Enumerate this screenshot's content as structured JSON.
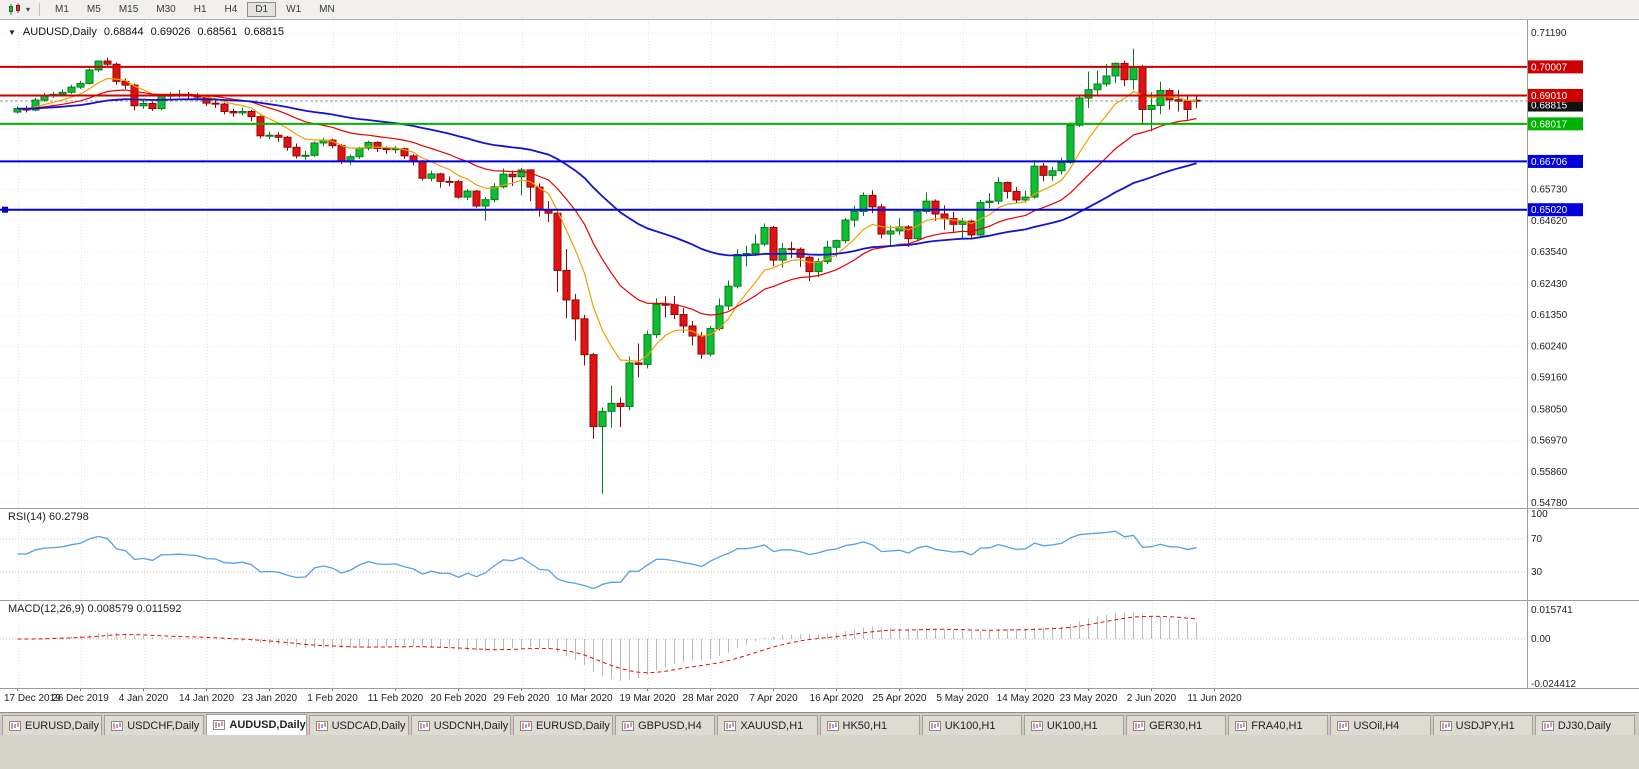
{
  "toolbar": {
    "chart_type_icon": "candlestick-chart-icon",
    "dropdown_icon": "▾",
    "timeframes": [
      "M1",
      "M5",
      "M15",
      "M30",
      "H1",
      "H4",
      "D1",
      "W1",
      "MN"
    ],
    "active_timeframe": "D1"
  },
  "chart_title": {
    "menu_icon": "▼",
    "symbol_period": "AUDUSD,Daily",
    "open": "0.68844",
    "high": "0.69026",
    "low": "0.68561",
    "close": "0.68815"
  },
  "panels": {
    "rsi_label": "RSI(14) 60.2798",
    "macd_label": "MACD(12,26,9) 0.008579 0.011592"
  },
  "tabs": [
    {
      "label": "EURUSD,Daily",
      "active": false
    },
    {
      "label": "USDCHF,Daily",
      "active": false
    },
    {
      "label": "AUDUSD,Daily",
      "active": true
    },
    {
      "label": "USDCAD,Daily",
      "active": false
    },
    {
      "label": "USDCNH,Daily",
      "active": false
    },
    {
      "label": "EURUSD,Daily",
      "active": false
    },
    {
      "label": "GBPUSD,H4",
      "active": false
    },
    {
      "label": "XAUUSD,H1",
      "active": false
    },
    {
      "label": "HK50,H1",
      "active": false
    },
    {
      "label": "UK100,H1",
      "active": false
    },
    {
      "label": "UK100,H1",
      "active": false
    },
    {
      "label": "GER30,H1",
      "active": false
    },
    {
      "label": "FRA40,H1",
      "active": false
    },
    {
      "label": "USOil,H4",
      "active": false
    },
    {
      "label": "USDJPY,H1",
      "active": false
    },
    {
      "label": "DJ30,Daily",
      "active": false
    }
  ],
  "chart_data": {
    "type": "candlestick",
    "symbol": "AUDUSD",
    "period": "Daily",
    "current_ohlc": {
      "open": 0.68844,
      "high": 0.69026,
      "low": 0.68561,
      "close": 0.68815
    },
    "y_axis": {
      "min": 0.5478,
      "max": 0.7119,
      "tick_prices": [
        0.7119,
        0.6573,
        0.6462,
        0.6354,
        0.6243,
        0.6135,
        0.6024,
        0.5916,
        0.5805,
        0.5697,
        0.5586,
        0.5478
      ],
      "grid_prices": [
        0.7119,
        0.7008,
        0.6897,
        0.6786,
        0.6675,
        0.6573,
        0.6462,
        0.6354,
        0.6243,
        0.6135,
        0.6024,
        0.5916,
        0.5805,
        0.5697,
        0.5586,
        0.5478
      ]
    },
    "x_tick_labels": [
      "17 Dec 2019",
      "26 Dec 2019",
      "4 Jan 2020",
      "14 Jan 2020",
      "23 Jan 2020",
      "1 Feb 2020",
      "11 Feb 2020",
      "20 Feb 2020",
      "29 Feb 2020",
      "10 Mar 2020",
      "19 Mar 2020",
      "28 Mar 2020",
      "7 Apr 2020",
      "16 Apr 2020",
      "25 Apr 2020",
      "5 May 2020",
      "14 May 2020",
      "23 May 2020",
      "2 Jun 2020",
      "11 Jun 2020"
    ],
    "candles": [
      [
        0.6843,
        0.6862,
        0.6838,
        0.6855
      ],
      [
        0.6855,
        0.6864,
        0.6842,
        0.685
      ],
      [
        0.685,
        0.6892,
        0.6846,
        0.6885
      ],
      [
        0.6885,
        0.691,
        0.6879,
        0.69
      ],
      [
        0.69,
        0.6914,
        0.6892,
        0.6905
      ],
      [
        0.6905,
        0.6922,
        0.6899,
        0.6912
      ],
      [
        0.6912,
        0.6938,
        0.6907,
        0.693
      ],
      [
        0.693,
        0.6952,
        0.6924,
        0.6943
      ],
      [
        0.6943,
        0.6996,
        0.6939,
        0.699
      ],
      [
        0.699,
        0.7023,
        0.6982,
        0.7021
      ],
      [
        0.7021,
        0.7032,
        0.6998,
        0.701
      ],
      [
        0.701,
        0.7016,
        0.6938,
        0.695
      ],
      [
        0.695,
        0.6961,
        0.6924,
        0.6937
      ],
      [
        0.6937,
        0.6942,
        0.6849,
        0.6865
      ],
      [
        0.6865,
        0.6884,
        0.6854,
        0.6873
      ],
      [
        0.6873,
        0.688,
        0.6847,
        0.6855
      ],
      [
        0.6855,
        0.6905,
        0.6849,
        0.69
      ],
      [
        0.69,
        0.6912,
        0.6885,
        0.6902
      ],
      [
        0.6902,
        0.692,
        0.6894,
        0.6905
      ],
      [
        0.6905,
        0.6913,
        0.6887,
        0.69
      ],
      [
        0.69,
        0.6908,
        0.6884,
        0.6895
      ],
      [
        0.6895,
        0.6901,
        0.6864,
        0.6874
      ],
      [
        0.6874,
        0.6884,
        0.6857,
        0.6871
      ],
      [
        0.6871,
        0.6876,
        0.6835,
        0.6845
      ],
      [
        0.6845,
        0.6855,
        0.6826,
        0.684
      ],
      [
        0.684,
        0.6858,
        0.6832,
        0.6845
      ],
      [
        0.6845,
        0.685,
        0.6811,
        0.6827
      ],
      [
        0.6827,
        0.6831,
        0.6751,
        0.676
      ],
      [
        0.676,
        0.6774,
        0.6748,
        0.6762
      ],
      [
        0.6762,
        0.6772,
        0.6739,
        0.6755
      ],
      [
        0.6755,
        0.676,
        0.6708,
        0.672
      ],
      [
        0.672,
        0.6733,
        0.6681,
        0.669
      ],
      [
        0.669,
        0.6707,
        0.6677,
        0.6692
      ],
      [
        0.6692,
        0.674,
        0.6687,
        0.6735
      ],
      [
        0.6735,
        0.6753,
        0.6724,
        0.6745
      ],
      [
        0.6745,
        0.675,
        0.6716,
        0.6726
      ],
      [
        0.6726,
        0.6731,
        0.6661,
        0.6672
      ],
      [
        0.6672,
        0.6695,
        0.6659,
        0.6687
      ],
      [
        0.6687,
        0.6722,
        0.6679,
        0.6717
      ],
      [
        0.6717,
        0.6743,
        0.6709,
        0.6737
      ],
      [
        0.6737,
        0.6741,
        0.6704,
        0.6716
      ],
      [
        0.6716,
        0.6723,
        0.6697,
        0.6712
      ],
      [
        0.6712,
        0.6724,
        0.6699,
        0.6715
      ],
      [
        0.6715,
        0.6719,
        0.6679,
        0.669
      ],
      [
        0.669,
        0.6696,
        0.6657,
        0.667
      ],
      [
        0.667,
        0.6675,
        0.6604,
        0.6612
      ],
      [
        0.6612,
        0.6638,
        0.6601,
        0.6627
      ],
      [
        0.6627,
        0.6631,
        0.6579,
        0.6601
      ],
      [
        0.6601,
        0.6618,
        0.6584,
        0.66
      ],
      [
        0.66,
        0.6606,
        0.6541,
        0.6546
      ],
      [
        0.6546,
        0.6573,
        0.6536,
        0.6567
      ],
      [
        0.6567,
        0.6571,
        0.6509,
        0.6515
      ],
      [
        0.6515,
        0.6546,
        0.6464,
        0.6537
      ],
      [
        0.6537,
        0.6595,
        0.6527,
        0.6582
      ],
      [
        0.6582,
        0.6646,
        0.6576,
        0.6626
      ],
      [
        0.6626,
        0.6639,
        0.6585,
        0.6617
      ],
      [
        0.6617,
        0.6648,
        0.6552,
        0.6641
      ],
      [
        0.6641,
        0.6642,
        0.6532,
        0.6581
      ],
      [
        0.6581,
        0.6594,
        0.6478,
        0.6501
      ],
      [
        0.6501,
        0.6532,
        0.6459,
        0.649
      ],
      [
        0.649,
        0.6506,
        0.6214,
        0.629
      ],
      [
        0.629,
        0.6365,
        0.6123,
        0.6187
      ],
      [
        0.6187,
        0.6208,
        0.6045,
        0.6121
      ],
      [
        0.6121,
        0.6135,
        0.5958,
        0.5996
      ],
      [
        0.5996,
        0.6002,
        0.5702,
        0.5745
      ],
      [
        0.5745,
        0.5812,
        0.551,
        0.5798
      ],
      [
        0.5798,
        0.5888,
        0.5741,
        0.5826
      ],
      [
        0.5826,
        0.5846,
        0.5743,
        0.5815
      ],
      [
        0.5815,
        0.5989,
        0.5802,
        0.5967
      ],
      [
        0.5967,
        0.6035,
        0.5917,
        0.5962
      ],
      [
        0.5962,
        0.608,
        0.5948,
        0.6066
      ],
      [
        0.6066,
        0.6193,
        0.6054,
        0.6172
      ],
      [
        0.6172,
        0.62,
        0.6126,
        0.617
      ],
      [
        0.617,
        0.6201,
        0.612,
        0.6136
      ],
      [
        0.6136,
        0.6159,
        0.6072,
        0.6096
      ],
      [
        0.6096,
        0.6114,
        0.6028,
        0.6061
      ],
      [
        0.6061,
        0.6075,
        0.5981,
        0.5998
      ],
      [
        0.5998,
        0.6096,
        0.599,
        0.6087
      ],
      [
        0.6087,
        0.6192,
        0.608,
        0.6166
      ],
      [
        0.6166,
        0.6255,
        0.6152,
        0.6235
      ],
      [
        0.6235,
        0.6364,
        0.6227,
        0.6346
      ],
      [
        0.6346,
        0.6376,
        0.6304,
        0.6349
      ],
      [
        0.6349,
        0.6416,
        0.6341,
        0.6382
      ],
      [
        0.6382,
        0.6454,
        0.6375,
        0.644
      ],
      [
        0.644,
        0.6445,
        0.6305,
        0.6326
      ],
      [
        0.6326,
        0.6386,
        0.63,
        0.6366
      ],
      [
        0.6366,
        0.639,
        0.6333,
        0.6364
      ],
      [
        0.6364,
        0.637,
        0.6302,
        0.6336
      ],
      [
        0.6336,
        0.6341,
        0.6253,
        0.6286
      ],
      [
        0.6286,
        0.6333,
        0.6266,
        0.6321
      ],
      [
        0.6321,
        0.6394,
        0.6312,
        0.6371
      ],
      [
        0.6371,
        0.6398,
        0.6338,
        0.6394
      ],
      [
        0.6394,
        0.6472,
        0.6385,
        0.6466
      ],
      [
        0.6466,
        0.6516,
        0.6441,
        0.6496
      ],
      [
        0.6496,
        0.6562,
        0.648,
        0.6552
      ],
      [
        0.6552,
        0.657,
        0.649,
        0.6512
      ],
      [
        0.6512,
        0.6522,
        0.6402,
        0.6417
      ],
      [
        0.6417,
        0.6447,
        0.6374,
        0.6428
      ],
      [
        0.6428,
        0.6472,
        0.6413,
        0.6442
      ],
      [
        0.6442,
        0.6448,
        0.6372,
        0.6401
      ],
      [
        0.6401,
        0.6504,
        0.6393,
        0.6496
      ],
      [
        0.6496,
        0.6562,
        0.6489,
        0.6532
      ],
      [
        0.6532,
        0.6538,
        0.6463,
        0.6487
      ],
      [
        0.6487,
        0.6517,
        0.6432,
        0.6471
      ],
      [
        0.6471,
        0.6495,
        0.6423,
        0.6451
      ],
      [
        0.6451,
        0.6473,
        0.6403,
        0.6462
      ],
      [
        0.6462,
        0.6467,
        0.6402,
        0.6414
      ],
      [
        0.6414,
        0.6536,
        0.641,
        0.6527
      ],
      [
        0.6527,
        0.656,
        0.6508,
        0.6532
      ],
      [
        0.6532,
        0.6616,
        0.6521,
        0.6597
      ],
      [
        0.6597,
        0.66,
        0.6541,
        0.6566
      ],
      [
        0.6566,
        0.6581,
        0.6524,
        0.6536
      ],
      [
        0.6536,
        0.6569,
        0.6526,
        0.6546
      ],
      [
        0.6546,
        0.6675,
        0.6541,
        0.6654
      ],
      [
        0.6654,
        0.6665,
        0.6601,
        0.6622
      ],
      [
        0.6622,
        0.6652,
        0.6603,
        0.6638
      ],
      [
        0.6638,
        0.6684,
        0.6625,
        0.6667
      ],
      [
        0.6667,
        0.6807,
        0.6662,
        0.6797
      ],
      [
        0.6797,
        0.6899,
        0.6791,
        0.6892
      ],
      [
        0.6892,
        0.6984,
        0.6858,
        0.6921
      ],
      [
        0.6921,
        0.6988,
        0.6902,
        0.6941
      ],
      [
        0.6941,
        0.7011,
        0.6932,
        0.6969
      ],
      [
        0.6969,
        0.7016,
        0.6943,
        0.7013
      ],
      [
        0.7013,
        0.7022,
        0.6933,
        0.6956
      ],
      [
        0.6956,
        0.7064,
        0.6921,
        0.7
      ],
      [
        0.7,
        0.7008,
        0.6799,
        0.6852
      ],
      [
        0.6852,
        0.6912,
        0.6776,
        0.6866
      ],
      [
        0.6866,
        0.6949,
        0.6836,
        0.6918
      ],
      [
        0.6918,
        0.6925,
        0.6851,
        0.6886
      ],
      [
        0.6886,
        0.692,
        0.6845,
        0.6881
      ],
      [
        0.6881,
        0.6903,
        0.6817,
        0.6852
      ],
      [
        0.68844,
        0.69026,
        0.68561,
        0.68815
      ]
    ],
    "overlays": {
      "moving_averages": [
        {
          "period": 8,
          "method": "ema",
          "color": "#f0a000",
          "width": 1.2
        },
        {
          "period": 20,
          "method": "ema",
          "color": "#e80000",
          "width": 1.2
        },
        {
          "period": 50,
          "method": "ema",
          "color": "#1414cc",
          "width": 1.8
        }
      ],
      "horizontal_lines": [
        {
          "price": 0.70007,
          "color": "#cc0000"
        },
        {
          "price": 0.6901,
          "color": "#cc0000"
        },
        {
          "price": 0.68017,
          "color": "#00b300"
        },
        {
          "price": 0.66706,
          "color": "#0000dd"
        },
        {
          "price": 0.6502,
          "color": "#0000dd",
          "handle_left": true
        }
      ],
      "bid_line": {
        "price": 0.68815,
        "label_color": "#111111"
      }
    },
    "indicators": [
      {
        "name": "RSI",
        "params": [
          14
        ],
        "current": 60.2798,
        "levels": [
          70,
          30
        ],
        "scale_values": [
          100,
          70,
          30
        ],
        "scale_labels": [
          "100",
          "70",
          "30"
        ],
        "color": "#55a0e6"
      },
      {
        "name": "MACD",
        "params": [
          12,
          26,
          9
        ],
        "current": [
          0.008579,
          0.011592
        ],
        "scale_values": [
          0.015741,
          0,
          -0.024412
        ],
        "scale_labels": [
          "0.015741",
          "0.00",
          "-0.024412"
        ],
        "histogram_color": "#b9b9b9",
        "signal_color": "#e01010"
      }
    ]
  }
}
